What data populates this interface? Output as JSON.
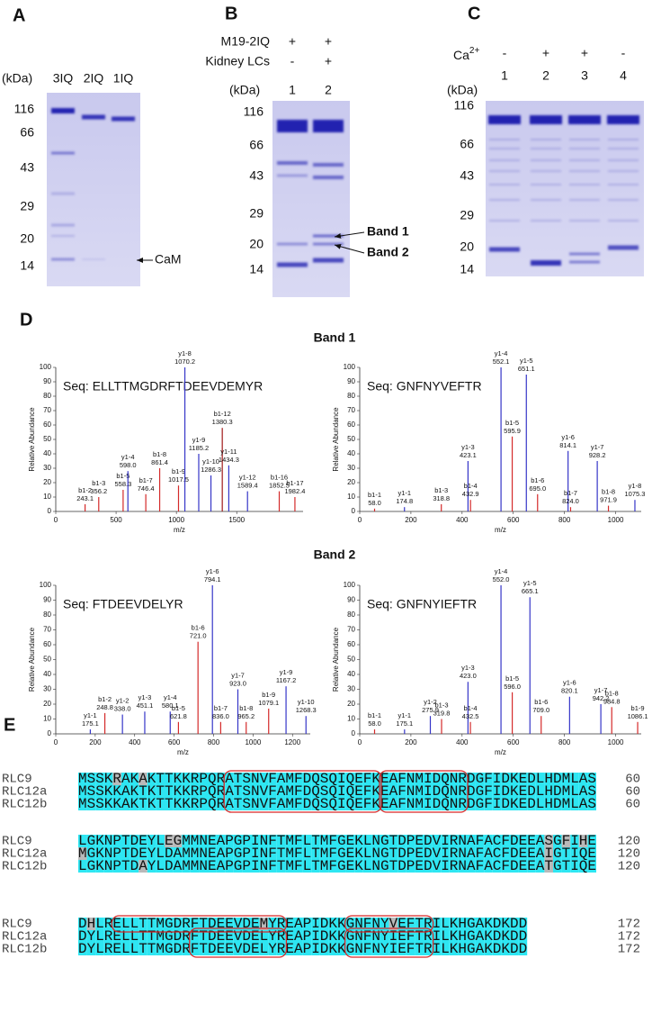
{
  "panel_a": {
    "label": "A",
    "unit": "(kDa)",
    "lanes": [
      "3IQ",
      "2IQ",
      "1IQ"
    ],
    "markers": [
      116,
      66,
      43,
      29,
      20,
      14
    ],
    "annotation": "CaM"
  },
  "panel_b": {
    "label": "B",
    "conditions": [
      {
        "name": "M19-2IQ",
        "lanes": [
          "+",
          "+"
        ]
      },
      {
        "name": "Kidney LCs",
        "lanes": [
          "-",
          "+"
        ]
      }
    ],
    "unit": "(kDa)",
    "lanes": [
      "1",
      "2"
    ],
    "markers": [
      116,
      66,
      43,
      29,
      20,
      14
    ],
    "annotations": [
      "Band 1",
      "Band 2"
    ]
  },
  "panel_c": {
    "label": "C",
    "condition": {
      "name": "Ca",
      "superscript": "2+",
      "lanes": [
        "-",
        "+",
        "+",
        "-"
      ]
    },
    "unit": "(kDa)",
    "lanes": [
      "1",
      "2",
      "3",
      "4"
    ],
    "markers": [
      116,
      66,
      43,
      29,
      20,
      14
    ]
  },
  "panel_d": {
    "label": "D",
    "groups": [
      "Band 1",
      "Band 2"
    ]
  },
  "chart_data": [
    {
      "type": "stem",
      "title": "Seq: ELLTTMGDRFTDEEVDEMYR",
      "xlabel": "m/z",
      "ylabel": "Relative Abundance",
      "xlim": [
        0,
        2050
      ],
      "xticks": [
        0,
        500,
        1000,
        1500
      ],
      "ylim": [
        0,
        100
      ],
      "yticks": [
        0,
        10,
        20,
        30,
        40,
        50,
        60,
        70,
        80,
        90,
        100
      ],
      "peaks": {
        "names": [
          "b1-2",
          "b1-3",
          "b1-5",
          "y1-4",
          "b1-7",
          "b1-8",
          "b1-9",
          "y1-8",
          "y1-9",
          "y1-10",
          "b1-12",
          "y1-11",
          "y1-12",
          "b1-16",
          "b1-17"
        ],
        "x": [
          243.1,
          356.2,
          558.3,
          598.0,
          746.4,
          861.4,
          1017.5,
          1070.2,
          1185.2,
          1286.3,
          1380.3,
          1434.3,
          1589.4,
          1852.5,
          1982.4
        ],
        "x_labels": [
          "243.1",
          "356.2",
          "558.3",
          "598.0",
          "746.4",
          "861.4",
          "1017.5",
          "1070.2",
          "1185.2",
          "1286.3",
          "1380.3",
          "1434.3",
          "1589.4",
          "1852.5",
          "1982.4"
        ],
        "values": [
          5,
          10,
          15,
          28,
          12,
          30,
          18,
          100,
          40,
          25,
          58,
          32,
          14,
          14,
          10
        ],
        "colors": [
          "#d42a2a",
          "#d42a2a",
          "#d42a2a",
          "#3535c8",
          "#d42a2a",
          "#d42a2a",
          "#d42a2a",
          "#3535c8",
          "#3535c8",
          "#3535c8",
          "#a01818",
          "#3535c8",
          "#3535c8",
          "#d42a2a",
          "#d42a2a"
        ]
      }
    },
    {
      "type": "stem",
      "title": "Seq: GNFNYVEFTR",
      "xlabel": "m/z",
      "ylabel": "Relative Abundance",
      "xlim": [
        0,
        1100
      ],
      "xticks": [
        0,
        200,
        400,
        600,
        800,
        1000
      ],
      "ylim": [
        0,
        100
      ],
      "yticks": [
        0,
        10,
        20,
        30,
        40,
        50,
        60,
        70,
        80,
        90,
        100
      ],
      "peaks": {
        "names": [
          "b1-1",
          "y1-1",
          "b1-3",
          "y1-3",
          "b1-4",
          "y1-4",
          "b1-5",
          "y1-5",
          "b1-6",
          "y1-6",
          "b1-7",
          "y1-7",
          "b1-8",
          "y1-8"
        ],
        "x": [
          58.0,
          174.8,
          318.8,
          423.1,
          432.9,
          552.1,
          595.9,
          651.1,
          695.0,
          814.1,
          824.0,
          928.2,
          971.9,
          1075.3
        ],
        "x_labels": [
          "58.0",
          "174.8",
          "318.8",
          "423.1",
          "432.9",
          "552.1",
          "595.9",
          "651.1",
          "695.0",
          "814.1",
          "824.0",
          "928.2",
          "971.9",
          "1075.3"
        ],
        "values": [
          2,
          3,
          5,
          35,
          8,
          100,
          52,
          95,
          12,
          42,
          3,
          35,
          4,
          8
        ],
        "colors": [
          "#d42a2a",
          "#3535c8",
          "#d42a2a",
          "#3535c8",
          "#d42a2a",
          "#3535c8",
          "#d42a2a",
          "#3535c8",
          "#d42a2a",
          "#3535c8",
          "#d42a2a",
          "#3535c8",
          "#d42a2a",
          "#3535c8"
        ]
      }
    },
    {
      "type": "stem",
      "title": "Seq: FTDEEVDELYR",
      "xlabel": "m/z",
      "ylabel": "Relative Abundance",
      "xlim": [
        0,
        1290
      ],
      "xticks": [
        0,
        200,
        400,
        600,
        800,
        1000,
        1200
      ],
      "ylim": [
        0,
        100
      ],
      "yticks": [
        0,
        10,
        20,
        30,
        40,
        50,
        60,
        70,
        80,
        90,
        100
      ],
      "peaks": {
        "names": [
          "y1-1",
          "b1-2",
          "y1-2",
          "y1-3",
          "y1-4",
          "b1-5",
          "b1-6",
          "y1-6",
          "b1-7",
          "y1-7",
          "b1-8",
          "b1-9",
          "y1-9",
          "y1-10"
        ],
        "x": [
          175.1,
          248.8,
          338.0,
          451.1,
          580.1,
          621.8,
          721.0,
          794.1,
          836.0,
          923.0,
          965.2,
          1079.1,
          1167.2,
          1268.3
        ],
        "x_labels": [
          "175.1",
          "248.8",
          "338.0",
          "451.1",
          "580.1",
          "621.8",
          "721.0",
          "794.1",
          "836.0",
          "923.0",
          "965.2",
          "1079.1",
          "1167.2",
          "1268.3"
        ],
        "values": [
          3,
          14,
          13,
          15,
          15,
          8,
          62,
          100,
          8,
          30,
          8,
          17,
          32,
          12
        ],
        "colors": [
          "#3535c8",
          "#d42a2a",
          "#3535c8",
          "#3535c8",
          "#3535c8",
          "#d42a2a",
          "#d42a2a",
          "#3535c8",
          "#d42a2a",
          "#3535c8",
          "#d42a2a",
          "#d42a2a",
          "#3535c8",
          "#3535c8"
        ]
      }
    },
    {
      "type": "stem",
      "title": "Seq: GNFNYIEFTR",
      "xlabel": "m/z",
      "ylabel": "Relative Abundance",
      "xlim": [
        0,
        1100
      ],
      "xticks": [
        0,
        200,
        400,
        600,
        800,
        1000
      ],
      "ylim": [
        0,
        100
      ],
      "yticks": [
        0,
        10,
        20,
        30,
        40,
        50,
        60,
        70,
        80,
        90,
        100
      ],
      "peaks": {
        "names": [
          "b1-1",
          "y1-1",
          "y1-2",
          "b1-3",
          "y1-3",
          "b1-4",
          "y1-4",
          "b1-5",
          "y1-5",
          "b1-6",
          "y1-6",
          "y1-7",
          "b1-8",
          "b1-9"
        ],
        "x": [
          58.0,
          175.1,
          275.9,
          319.8,
          423.0,
          432.5,
          552.0,
          596.0,
          665.1,
          709.0,
          820.1,
          942.2,
          984.8,
          1086.1
        ],
        "x_labels": [
          "58.0",
          "175.1",
          "275.9",
          "319.8",
          "423.0",
          "432.5",
          "552.0",
          "596.0",
          "665.1",
          "709.0",
          "820.1",
          "942.2",
          "984.8",
          "1086.1"
        ],
        "values": [
          3,
          3,
          12,
          10,
          35,
          8,
          100,
          28,
          92,
          12,
          25,
          20,
          18,
          8
        ],
        "colors": [
          "#d42a2a",
          "#3535c8",
          "#3535c8",
          "#d42a2a",
          "#3535c8",
          "#d42a2a",
          "#3535c8",
          "#d42a2a",
          "#3535c8",
          "#d42a2a",
          "#3535c8",
          "#3535c8",
          "#d42a2a",
          "#d42a2a"
        ]
      }
    }
  ],
  "panel_e": {
    "label": "E",
    "blocks": [
      {
        "rows": [
          {
            "name": "RLC9",
            "sequence": "MSSKRAKAKTTKKRPQRATSNVFAMFDQSQIQEFKEAFNMIDQNRDGFIDKEDLHDMLAS",
            "end": 60
          },
          {
            "name": "RLC12a",
            "sequence": "MSSKKAKTKTTKKRPQRATSNVFAMFDQSQIQEFKEAFNMIDQNRDGFIDKEDLHDMLAS",
            "end": 60
          },
          {
            "name": "RLC12b",
            "sequence": "MSSKKAKTKTTKKRPQRATSNVFAMFDQSQIQEFKEAFNMIDQNRDGFIDKEDLHDMLAS",
            "end": 60
          }
        ]
      },
      {
        "rows": [
          {
            "name": "RLC9",
            "sequence": "LGKNPTDEYLEGMMNEAPGPINFTMFLTMFGEKLNGTDPEDVIRNAFACFDEEASGFIHE",
            "end": 120
          },
          {
            "name": "RLC12a",
            "sequence": "MGKNPTDEYLDAMMNEAPGPINFTMFLTMFGEKLNGTDPEDVIRNAFACFDEEAIGTIQE",
            "end": 120
          },
          {
            "name": "RLC12b",
            "sequence": "LGKNPTDAYLDAMMNEAPGPINFTMFLTMFGEKLNGTDPEDVIRNAFACFDEEATGTIQE",
            "end": 120
          }
        ]
      },
      {
        "rows": [
          {
            "name": "RLC9",
            "sequence": "DHLRELLTTMGDRFTDEEVDEMYREAPIDKKGNFNYVEFTRILKHGAKDKDD",
            "end": 172
          },
          {
            "name": "RLC12a",
            "sequence": "DYLRELLTTMGDRFTDEEVDELYREAPIDKKGNFNYIEFTRILKHGAKDKDD",
            "end": 172
          },
          {
            "name": "RLC12b",
            "sequence": "DYLRELLTTMGDRFTDEEVDELYREAPIDKKGNFNYIEFTRILKHGAKDKDD",
            "end": 172
          }
        ]
      }
    ]
  }
}
